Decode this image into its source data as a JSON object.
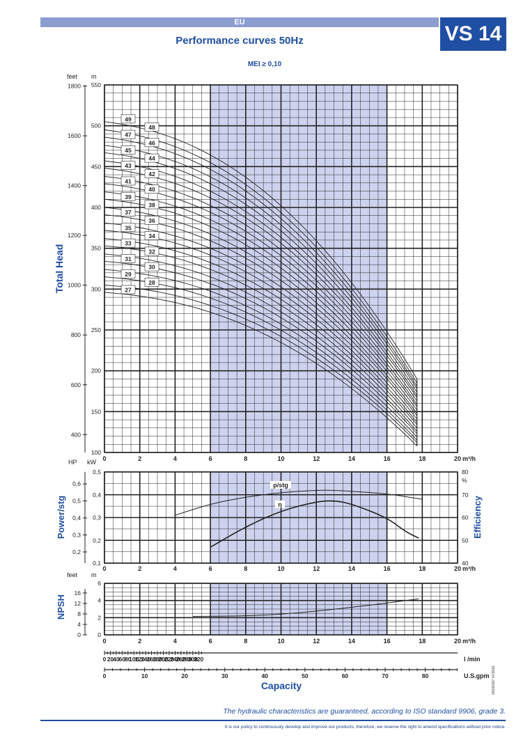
{
  "header": {
    "region_label": "EU",
    "title": "Performance curves 50Hz",
    "model": "VS 14",
    "mei": "MEI ≥ 0,10",
    "colors": {
      "brand": "#1f4fa2",
      "band": "#8c9dd0",
      "highlight": "#cdd2ee"
    }
  },
  "footer": {
    "guarantee": "The hydraulic characteristics are guaranteed, according to ISO standard 9906, grade 3.",
    "policy": "It is our policy to continuously develop and improve our products, therefore, we reserve the right to amend specifications without prior notice.",
    "docref": "00100167 07/2016"
  },
  "chart_data": [
    {
      "type": "line",
      "name_label": "Total Head",
      "ylabel": "Total Head",
      "y_unit_left": "feet",
      "y_unit_right": "m",
      "x_unit": "m³/h",
      "xlim": [
        0,
        20
      ],
      "ylim_m": [
        100,
        550
      ],
      "x_ticks": [
        "0",
        "2",
        "4",
        "6",
        "8",
        "10",
        "12",
        "14",
        "16",
        "18",
        "20"
      ],
      "y_ticks_m": [
        "100",
        "150",
        "200",
        "250",
        "300",
        "350",
        "400",
        "450",
        "500",
        "550"
      ],
      "y_ticks_ft": [
        "400",
        "600",
        "800",
        "1000",
        "1200",
        "1400",
        "1600",
        "1800"
      ],
      "highlight_range": [
        6,
        16
      ],
      "grid": true,
      "stages": [
        "27",
        "28",
        "29",
        "30",
        "31",
        "32",
        "33",
        "34",
        "35",
        "36",
        "37",
        "38",
        "39",
        "40",
        "41",
        "42",
        "43",
        "44",
        "45",
        "46",
        "47",
        "48",
        "49"
      ],
      "stage_head_at_zero_m": [
        296,
        305,
        315,
        324,
        334,
        343,
        353,
        362,
        372,
        381,
        391,
        400,
        410,
        419,
        429,
        438,
        448,
        457,
        467,
        476,
        486,
        495,
        505
      ],
      "stage_head_at_17_7_m": [
        108,
        112,
        115,
        119,
        123,
        126,
        130,
        134,
        137,
        141,
        145,
        148,
        152,
        156,
        159,
        163,
        167,
        170,
        174,
        178,
        181,
        185,
        190
      ]
    },
    {
      "type": "line",
      "name_label": "Power/stg",
      "ylabel": "Power/stg",
      "y2label": "Efficiency",
      "y_unit_left_hp": "HP",
      "y_unit_left_kw": "kW",
      "y2_unit": "%",
      "x_unit": "m³/h",
      "xlim": [
        0,
        20
      ],
      "ylim_kw": [
        0.1,
        0.5
      ],
      "y2lim": [
        40,
        80
      ],
      "x_ticks": [
        "0",
        "2",
        "4",
        "6",
        "8",
        "10",
        "12",
        "14",
        "16",
        "18",
        "20"
      ],
      "y_ticks_kw": [
        "0,1",
        "0,2",
        "0,3",
        "0,4",
        "0,5"
      ],
      "y_ticks_hp": [
        "0,2",
        "0,3",
        "0,4",
        "0,5",
        "0,6"
      ],
      "y2_ticks": [
        "40",
        "50",
        "60",
        "70",
        "80"
      ],
      "series": [
        {
          "name": "p/stg",
          "x": [
            4,
            6,
            8,
            10,
            12,
            13,
            14,
            16,
            18
          ],
          "y": [
            0.31,
            0.36,
            0.39,
            0.41,
            0.42,
            0.42,
            0.415,
            0.405,
            0.38
          ]
        },
        {
          "name": "η",
          "x": [
            6,
            8,
            10,
            12,
            13,
            14,
            16,
            17,
            17.8
          ],
          "y": [
            47,
            56,
            63,
            67,
            67.5,
            66,
            60,
            54,
            51
          ]
        }
      ]
    },
    {
      "type": "line",
      "name_label": "NPSH",
      "ylabel": "NPSH",
      "y_unit_left": "feet",
      "y_unit_right": "m",
      "x_unit": "m³/h",
      "xlim": [
        0,
        20
      ],
      "ylim_m": [
        0,
        6
      ],
      "x_ticks": [
        "0",
        "2",
        "4",
        "6",
        "8",
        "10",
        "12",
        "14",
        "16",
        "18",
        "20"
      ],
      "y_ticks_m": [
        "0",
        "2",
        "4",
        "6"
      ],
      "y_ticks_ft": [
        "0",
        "4",
        "8",
        "12",
        "16"
      ],
      "series": [
        {
          "name": "NPSH",
          "x": [
            5,
            8,
            10,
            12,
            14,
            16,
            17.8
          ],
          "y": [
            2.15,
            2.2,
            2.4,
            2.75,
            3.2,
            3.7,
            4.2
          ]
        }
      ]
    },
    {
      "type": "axis",
      "name_label": "Capacity",
      "xlabel": "Capacity",
      "lmin_unit": "l /min",
      "lmin_ticks": [
        "0",
        "20",
        "40",
        "60",
        "80",
        "100",
        "120",
        "140",
        "160",
        "180",
        "200",
        "220",
        "240",
        "260",
        "280",
        "300",
        "320"
      ],
      "gpm_unit": "U.S.gpm",
      "gpm_ticks": [
        "0",
        "10",
        "20",
        "30",
        "40",
        "50",
        "60",
        "70",
        "80"
      ]
    }
  ]
}
